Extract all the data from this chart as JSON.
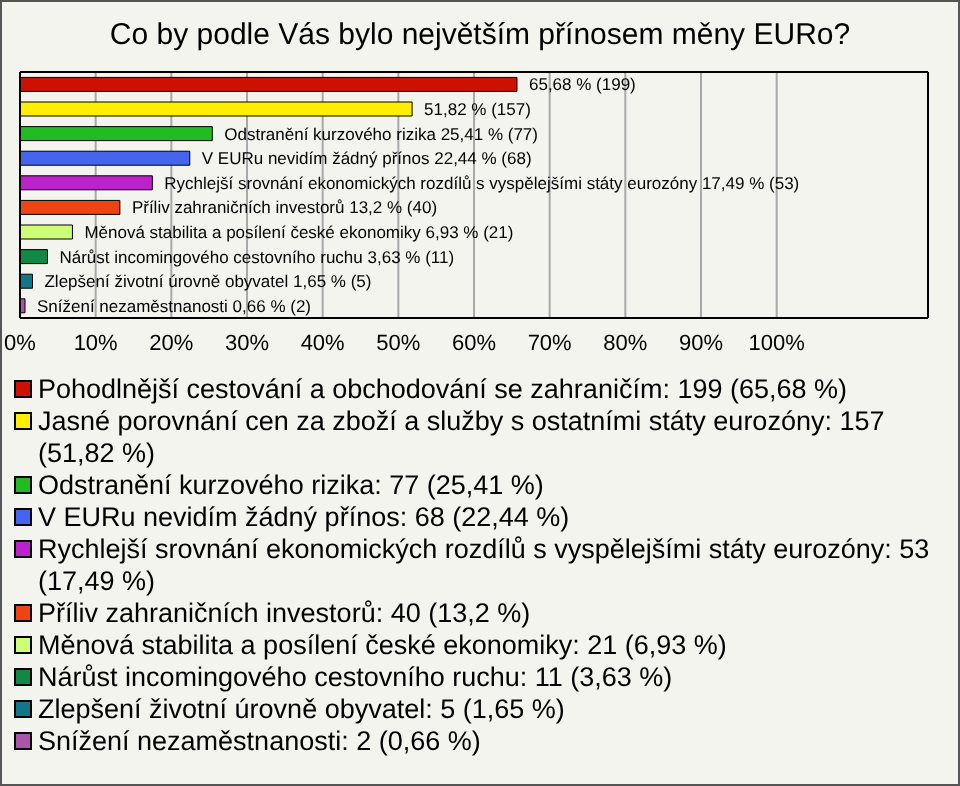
{
  "chart_data": {
    "type": "bar",
    "orientation": "horizontal",
    "stacked": true,
    "title": "Co by podle Vás bylo největším přínosem měny EURo?",
    "categories": [
      null,
      null,
      null,
      null,
      null,
      null,
      null,
      null,
      null,
      null
    ],
    "series": [
      {
        "name": "Pohodlnější cestování a obchodování se zahraničím: 199 (65,68 %)",
        "color": "#cc1100",
        "values": [
          65.68,
          null,
          null,
          null,
          null,
          null,
          null,
          null,
          null,
          null
        ],
        "value_labels": [
          "65,68 % (199)",
          null,
          null,
          null,
          null,
          null,
          null,
          null,
          null,
          null
        ]
      },
      {
        "name": "Jasné porovnání cen za zboží a služby s ostatními státy eurozóny: 157 (51,82 %)",
        "color": "#ffee00",
        "values": [
          null,
          51.82,
          null,
          null,
          null,
          null,
          null,
          null,
          null,
          null
        ],
        "value_labels": [
          null,
          "51,82 % (157)",
          null,
          null,
          null,
          null,
          null,
          null,
          null,
          null
        ]
      },
      {
        "name": "Odstranění kurzového rizika: 77 (25,41 %)",
        "color": "#22bb22",
        "values": [
          null,
          null,
          25.41,
          null,
          null,
          null,
          null,
          null,
          null,
          null
        ],
        "value_labels": [
          null,
          null,
          "Odstranění kurzového rizika 25,41 % (77)",
          null,
          null,
          null,
          null,
          null,
          null,
          null
        ]
      },
      {
        "name": "V EURu nevidím žádný přínos: 68 (22,44 %)",
        "color": "#4466ee",
        "values": [
          null,
          null,
          null,
          22.44,
          null,
          null,
          null,
          null,
          null,
          null
        ],
        "value_labels": [
          null,
          null,
          null,
          "V EURu nevidím žádný přínos 22,44 % (68)",
          null,
          null,
          null,
          null,
          null,
          null
        ]
      },
      {
        "name": "Rychlejší srovnání ekonomických rozdílů s vyspělejšími státy eurozóny: 53 (17,49 %)",
        "color": "#bb22cc",
        "values": [
          null,
          null,
          null,
          null,
          17.49,
          null,
          null,
          null,
          null,
          null
        ],
        "value_labels": [
          null,
          null,
          null,
          null,
          "Rychlejší srovnání ekonomických rozdílů s vyspělejšími státy eurozóny 17,49 % (53)",
          null,
          null,
          null,
          null,
          null
        ]
      },
      {
        "name": "Příliv zahraničních investorů: 40 (13,2 %)",
        "color": "#ee4411",
        "values": [
          null,
          null,
          null,
          null,
          null,
          13.2,
          null,
          null,
          null,
          null
        ],
        "value_labels": [
          null,
          null,
          null,
          null,
          null,
          "Příliv zahraničních investorů 13,2 % (40)",
          null,
          null,
          null,
          null
        ]
      },
      {
        "name": "Měnová stabilita a posílení české ekonomiky: 21 (6,93 %)",
        "color": "#ccff77",
        "values": [
          null,
          null,
          null,
          null,
          null,
          null,
          6.93,
          null,
          null,
          null
        ],
        "value_labels": [
          null,
          null,
          null,
          null,
          null,
          null,
          "Měnová stabilita a posílení české ekonomiky 6,93 % (21)",
          null,
          null,
          null
        ]
      },
      {
        "name": "Nárůst incomingového cestovního ruchu: 11 (3,63 %)",
        "color": "#118844",
        "values": [
          null,
          null,
          null,
          null,
          null,
          null,
          null,
          3.63,
          null,
          null
        ],
        "value_labels": [
          null,
          null,
          null,
          null,
          null,
          null,
          null,
          "Nárůst incomingového cestovního ruchu 3,63 % (11)",
          null,
          null
        ]
      },
      {
        "name": "Zlepšení životní úrovně obyvatel: 5 (1,65 %)",
        "color": "#117788",
        "values": [
          null,
          null,
          null,
          null,
          null,
          null,
          null,
          null,
          1.65,
          null
        ],
        "value_labels": [
          null,
          null,
          null,
          null,
          null,
          null,
          null,
          null,
          "Zlepšení životní úrovně obyvatel 1,65 % (5)",
          null
        ]
      },
      {
        "name": "Snížení nezaměstnanosti: 2 (0,66 %)",
        "color": "#aa55aa",
        "values": [
          null,
          null,
          null,
          null,
          null,
          null,
          null,
          null,
          null,
          0.66
        ],
        "value_labels": [
          null,
          null,
          null,
          null,
          null,
          null,
          null,
          null,
          null,
          "Snížení nezaměstnanosti 0,66 % (2)"
        ]
      }
    ],
    "xlim": [
      0,
      120
    ],
    "xticks": [
      {
        "value": 0,
        "label": "0%"
      },
      {
        "value": 10,
        "label": "10%"
      },
      {
        "value": 20,
        "label": "20%"
      },
      {
        "value": 30,
        "label": "30%"
      },
      {
        "value": 40,
        "label": "40%"
      },
      {
        "value": 50,
        "label": "50%"
      },
      {
        "value": 60,
        "label": "60%"
      },
      {
        "value": 70,
        "label": "70%"
      },
      {
        "value": 80,
        "label": "80%"
      },
      {
        "value": 90,
        "label": "90%"
      },
      {
        "value": 100,
        "label": "100%"
      }
    ],
    "grid": "x",
    "legend": "bottom"
  }
}
